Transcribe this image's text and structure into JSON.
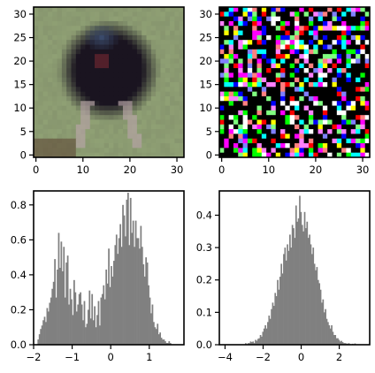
{
  "figure": {
    "background": "#ffffff",
    "panel_border_color": "#000000",
    "hist_color": "#808080"
  },
  "chart_data": [
    {
      "type": "image",
      "description_source": "visible",
      "image_size": [
        32,
        32
      ],
      "content": "blurred photo of a dark bird on grass",
      "colors": {
        "background_grass": "#8fa074",
        "bird_body": "#1a1420",
        "bird_head": "#3a4a6a",
        "legs": "#b8a4a8",
        "ground": "#5a4030"
      },
      "xticks": [
        0,
        10,
        20,
        30
      ],
      "yticks": [
        0,
        5,
        10,
        15,
        20,
        25,
        30
      ],
      "xlim": [
        -0.5,
        31.5
      ],
      "ylim": [
        31.5,
        -0.5
      ]
    },
    {
      "type": "image",
      "image_size": [
        32,
        32
      ],
      "content": "random colored noise (mostly black with bright pixels)",
      "palette": [
        "#000000",
        "#ffffff",
        "#ff00ff",
        "#00ff00",
        "#ff0000",
        "#0000ff",
        "#ffff00",
        "#00ffff",
        "#ff80ff",
        "#80ff80",
        "#8080ff",
        "#ff8080"
      ],
      "xticks": [
        0,
        10,
        20,
        30
      ],
      "yticks": [
        0,
        5,
        10,
        15,
        20,
        25,
        30
      ],
      "xlim": [
        -0.5,
        31.5
      ],
      "ylim": [
        31.5,
        -0.5
      ]
    },
    {
      "type": "bar",
      "subtype": "histogram",
      "xlim": [
        -2.0,
        1.9
      ],
      "ylim": [
        0,
        0.88
      ],
      "xticks": [
        -2,
        -1,
        0,
        1
      ],
      "yticks": [
        0.0,
        0.2,
        0.4,
        0.6,
        0.8
      ],
      "bin_start": -1.9,
      "bin_width": 0.0333,
      "values": [
        0.03,
        0.06,
        0.09,
        0.11,
        0.14,
        0.16,
        0.13,
        0.21,
        0.19,
        0.24,
        0.27,
        0.32,
        0.36,
        0.49,
        0.27,
        0.43,
        0.64,
        0.44,
        0.59,
        0.42,
        0.56,
        0.27,
        0.47,
        0.51,
        0.23,
        0.32,
        0.26,
        0.17,
        0.37,
        0.3,
        0.19,
        0.23,
        0.29,
        0.3,
        0.23,
        0.14,
        0.25,
        0.1,
        0.12,
        0.2,
        0.31,
        0.15,
        0.29,
        0.14,
        0.22,
        0.1,
        0.17,
        0.25,
        0.11,
        0.27,
        0.29,
        0.34,
        0.26,
        0.43,
        0.35,
        0.55,
        0.33,
        0.45,
        0.39,
        0.48,
        0.57,
        0.63,
        0.52,
        0.61,
        0.69,
        0.56,
        0.8,
        0.74,
        0.62,
        0.83,
        0.87,
        0.57,
        0.84,
        0.64,
        0.71,
        0.56,
        0.71,
        0.61,
        0.61,
        0.55,
        0.68,
        0.56,
        0.46,
        0.39,
        0.5,
        0.47,
        0.34,
        0.27,
        0.18,
        0.23,
        0.13,
        0.1,
        0.09,
        0.12,
        0.06,
        0.07,
        0.04,
        0.03,
        0.03,
        0.02,
        0.01,
        0.01,
        0.02,
        0.01
      ]
    },
    {
      "type": "bar",
      "subtype": "histogram",
      "xlim": [
        -4.3,
        3.6
      ],
      "ylim": [
        0,
        0.475
      ],
      "xticks": [
        -4,
        -2,
        0,
        2
      ],
      "yticks": [
        0.0,
        0.1,
        0.2,
        0.3,
        0.4
      ],
      "bin_start": -2.95,
      "bin_width": 0.0645,
      "values": [
        0.005,
        0.0,
        0.005,
        0.005,
        0.01,
        0.008,
        0.01,
        0.005,
        0.015,
        0.012,
        0.018,
        0.02,
        0.03,
        0.025,
        0.04,
        0.05,
        0.06,
        0.05,
        0.07,
        0.09,
        0.08,
        0.11,
        0.13,
        0.12,
        0.16,
        0.15,
        0.2,
        0.17,
        0.21,
        0.25,
        0.22,
        0.28,
        0.3,
        0.26,
        0.31,
        0.29,
        0.34,
        0.3,
        0.37,
        0.36,
        0.33,
        0.43,
        0.38,
        0.39,
        0.46,
        0.41,
        0.37,
        0.35,
        0.41,
        0.36,
        0.38,
        0.33,
        0.34,
        0.31,
        0.28,
        0.3,
        0.25,
        0.23,
        0.24,
        0.2,
        0.19,
        0.17,
        0.13,
        0.14,
        0.1,
        0.11,
        0.08,
        0.07,
        0.06,
        0.05,
        0.06,
        0.04,
        0.03,
        0.03,
        0.02,
        0.02,
        0.015,
        0.01,
        0.012,
        0.008,
        0.005,
        0.005,
        0.004,
        0.003,
        0.005,
        0.002,
        0.0,
        0.003,
        0.0,
        0.004
      ]
    }
  ]
}
